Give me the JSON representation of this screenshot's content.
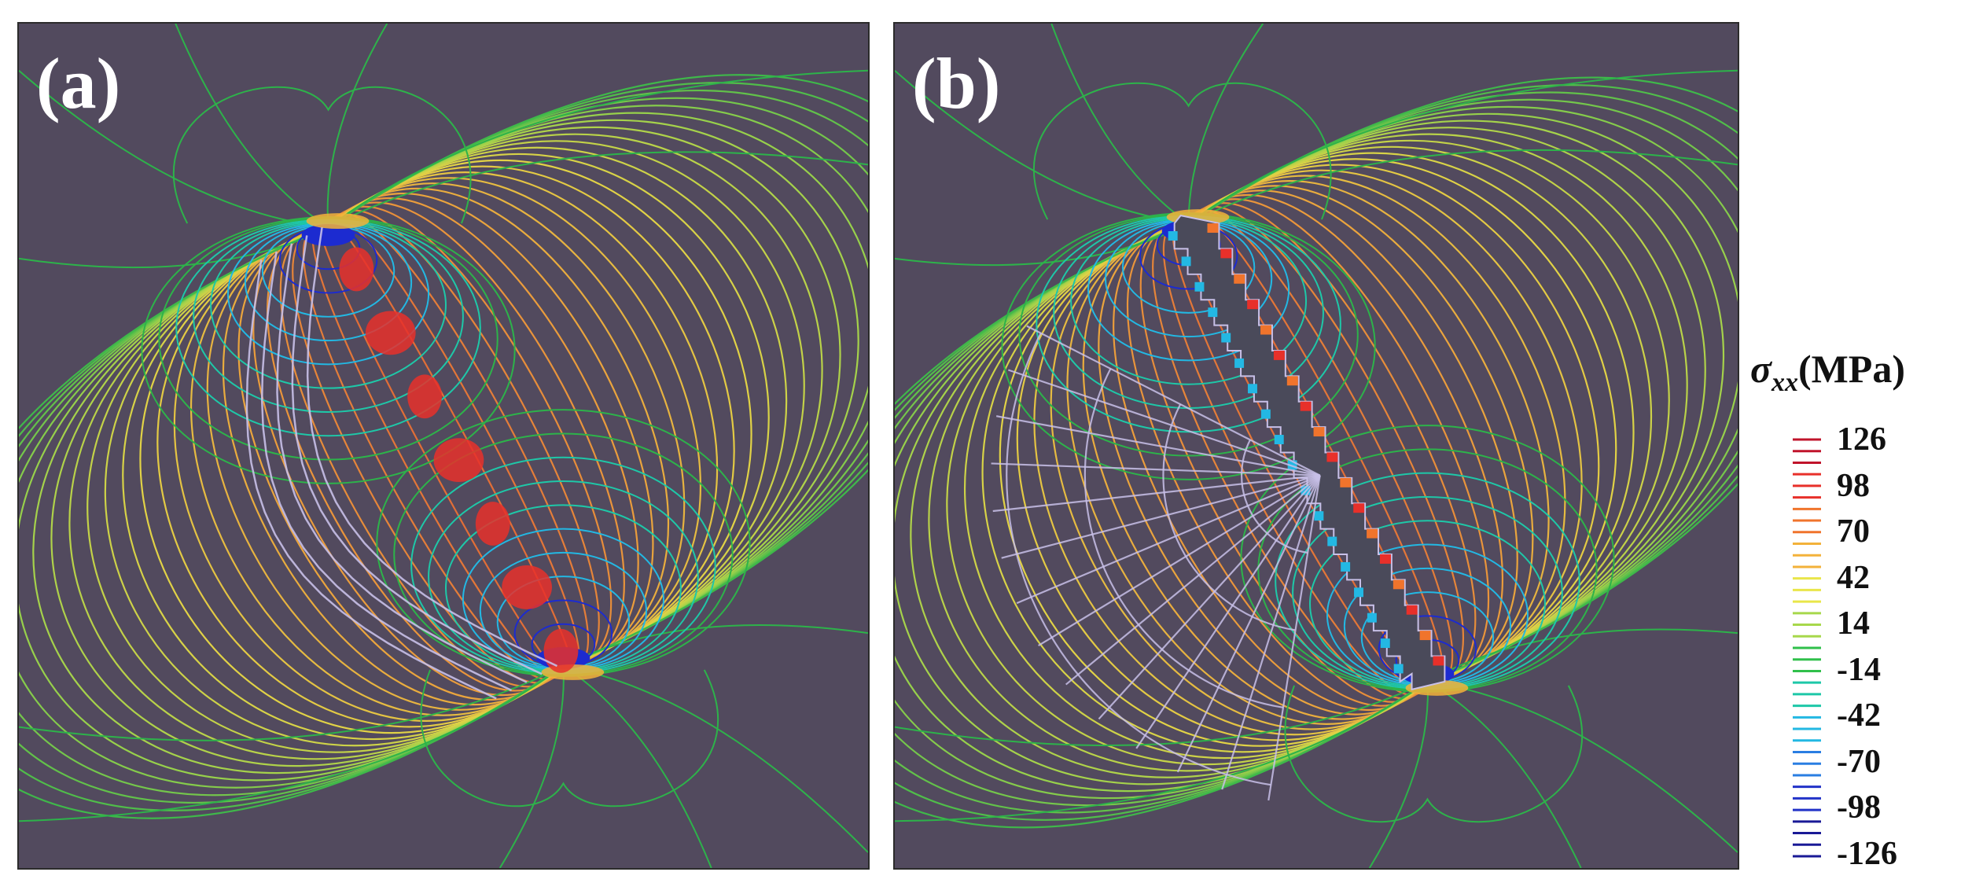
{
  "panels": [
    {
      "label": "(a)",
      "description_key": "a"
    },
    {
      "label": "(b)",
      "description_key": "b"
    }
  ],
  "legend": {
    "symbol": "σ",
    "subscript": "xx",
    "unit": "(MPa)",
    "ticks": [
      "126",
      "98",
      "70",
      "42",
      "14",
      "-14",
      "-42",
      "-70",
      "-98",
      "-126"
    ],
    "line_count": 37,
    "colors": [
      "#c0142b",
      "#e8302a",
      "#f0742c",
      "#f3b23a",
      "#e9e64a",
      "#a7d84b",
      "#30c04b",
      "#1ec8a8",
      "#23b8e3",
      "#2a7ee2",
      "#2233c8",
      "#1a1a96"
    ]
  },
  "colors": {
    "background": "#524a5e",
    "far_field": "#2db34a",
    "mid_field": "#d9c94a",
    "near_field": "#e07b3a",
    "hot": "#e8302a",
    "cold": "#1c2bd0",
    "grain_outline": "#c8c0e8"
  }
}
